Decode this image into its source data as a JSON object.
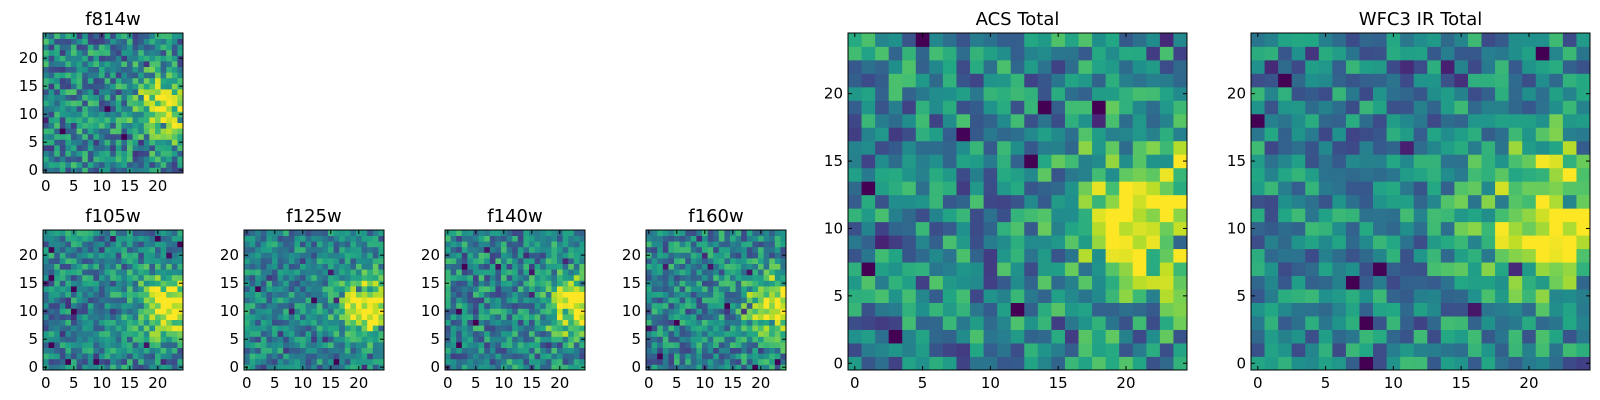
{
  "chart_data": [
    {
      "type": "heatmap",
      "id": "f814w",
      "title": "f814w",
      "colormap": "viridis",
      "grid_size": 25,
      "xlim": [
        0,
        25
      ],
      "ylim": [
        0,
        25
      ],
      "x_ticks": [
        "0",
        "5",
        "10",
        "15",
        "20"
      ],
      "y_ticks": [
        "0",
        "5",
        "10",
        "15",
        "20"
      ],
      "x_tick_values": [
        0,
        5,
        10,
        15,
        20
      ],
      "y_tick_values": [
        0,
        5,
        10,
        15,
        20
      ],
      "peak": [
        22,
        11
      ],
      "peak_value": 1.0,
      "noise_level": 0.28,
      "seed": 11
    },
    {
      "type": "heatmap",
      "id": "f105w",
      "title": "f105w",
      "colormap": "viridis",
      "grid_size": 25,
      "xlim": [
        0,
        25
      ],
      "ylim": [
        0,
        25
      ],
      "x_ticks": [
        "0",
        "5",
        "10",
        "15",
        "20"
      ],
      "y_ticks": [
        "0",
        "5",
        "10",
        "15",
        "20"
      ],
      "x_tick_values": [
        0,
        5,
        10,
        15,
        20
      ],
      "y_tick_values": [
        0,
        5,
        10,
        15,
        20
      ],
      "peak": [
        22,
        11
      ],
      "peak_value": 1.0,
      "noise_level": 0.24,
      "seed": 23
    },
    {
      "type": "heatmap",
      "id": "f125w",
      "title": "f125w",
      "colormap": "viridis",
      "grid_size": 25,
      "xlim": [
        0,
        25
      ],
      "ylim": [
        0,
        25
      ],
      "x_ticks": [
        "0",
        "5",
        "10",
        "15",
        "20"
      ],
      "y_ticks": [
        "0",
        "5",
        "10",
        "15",
        "20"
      ],
      "x_tick_values": [
        0,
        5,
        10,
        15,
        20
      ],
      "y_tick_values": [
        0,
        5,
        10,
        15,
        20
      ],
      "peak": [
        22,
        11
      ],
      "peak_value": 1.0,
      "noise_level": 0.22,
      "seed": 37
    },
    {
      "type": "heatmap",
      "id": "f140w",
      "title": "f140w",
      "colormap": "viridis",
      "grid_size": 25,
      "xlim": [
        0,
        25
      ],
      "ylim": [
        0,
        25
      ],
      "x_ticks": [
        "0",
        "5",
        "10",
        "15",
        "20"
      ],
      "y_ticks": [
        "0",
        "5",
        "10",
        "15",
        "20"
      ],
      "x_tick_values": [
        0,
        5,
        10,
        15,
        20
      ],
      "y_tick_values": [
        0,
        5,
        10,
        15,
        20
      ],
      "peak": [
        23,
        11
      ],
      "peak_value": 1.0,
      "noise_level": 0.26,
      "seed": 41
    },
    {
      "type": "heatmap",
      "id": "f160w",
      "title": "f160w",
      "colormap": "viridis",
      "grid_size": 25,
      "xlim": [
        0,
        25
      ],
      "ylim": [
        0,
        25
      ],
      "x_ticks": [
        "0",
        "5",
        "10",
        "15",
        "20"
      ],
      "y_ticks": [
        "0",
        "5",
        "10",
        "15",
        "20"
      ],
      "x_tick_values": [
        0,
        5,
        10,
        15,
        20
      ],
      "y_tick_values": [
        0,
        5,
        10,
        15,
        20
      ],
      "peak": [
        23,
        11
      ],
      "peak_value": 1.0,
      "noise_level": 0.25,
      "seed": 53
    },
    {
      "type": "heatmap",
      "id": "acs_total",
      "title": "ACS Total",
      "colormap": "viridis",
      "grid_size": 25,
      "xlim": [
        0,
        25
      ],
      "ylim": [
        0,
        25
      ],
      "x_ticks": [
        "0",
        "5",
        "10",
        "15",
        "20"
      ],
      "y_ticks": [
        "0",
        "5",
        "10",
        "15",
        "20"
      ],
      "x_tick_values": [
        0,
        5,
        10,
        15,
        20
      ],
      "y_tick_values": [
        0,
        5,
        10,
        15,
        20
      ],
      "peak": [
        22,
        11
      ],
      "peak_value": 1.0,
      "noise_level": 0.28,
      "seed": 11
    },
    {
      "type": "heatmap",
      "id": "wfc3_ir_total",
      "title": "WFC3 IR Total",
      "colormap": "viridis",
      "grid_size": 25,
      "xlim": [
        0,
        25
      ],
      "ylim": [
        0,
        25
      ],
      "x_ticks": [
        "0",
        "5",
        "10",
        "15",
        "20"
      ],
      "y_ticks": [
        "0",
        "5",
        "10",
        "15",
        "20"
      ],
      "x_tick_values": [
        0,
        5,
        10,
        15,
        20
      ],
      "y_tick_values": [
        0,
        5,
        10,
        15,
        20
      ],
      "peak": [
        22,
        11
      ],
      "peak_value": 1.0,
      "noise_level": 0.24,
      "seed": 71
    }
  ]
}
